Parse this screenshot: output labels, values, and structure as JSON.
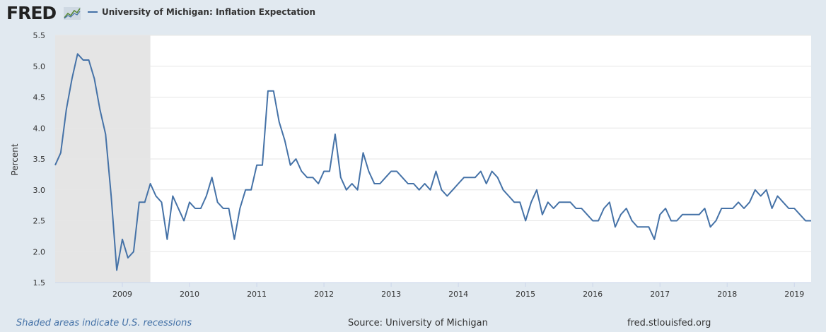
{
  "header": {
    "logo_text": "FRED",
    "logo_icon": "fred-chart-icon",
    "series_title": "University of Michigan: Inflation Expectation"
  },
  "footer": {
    "recession_note": "Shaded areas indicate U.S. recessions",
    "source": "Source: University of Michigan",
    "site": "fred.stlouisfed.org"
  },
  "colors": {
    "line": "#4572a7",
    "recession": "#e5e5e5",
    "background": "#e1e9f0",
    "plot": "#ffffff",
    "grid": "#e6e6e6"
  },
  "chart_data": {
    "type": "line",
    "title": "University of Michigan: Inflation Expectation",
    "ylabel": "Percent",
    "xlabel": "",
    "ylim": [
      1.5,
      5.5
    ],
    "xlim": [
      "2008-01",
      "2019-04"
    ],
    "y_ticks": [
      "1.5",
      "2.0",
      "2.5",
      "3.0",
      "3.5",
      "4.0",
      "4.5",
      "5.0",
      "5.5"
    ],
    "x_ticks": [
      "2009",
      "2010",
      "2011",
      "2012",
      "2013",
      "2014",
      "2015",
      "2016",
      "2017",
      "2018",
      "2019"
    ],
    "grid": "horizontal",
    "recessions": [
      [
        "2008-01",
        "2009-06"
      ]
    ],
    "series": [
      {
        "name": "University of Michigan: Inflation Expectation",
        "start": "2008-01",
        "frequency": "monthly",
        "values": [
          3.4,
          3.6,
          4.3,
          4.8,
          5.2,
          5.1,
          5.1,
          4.8,
          4.3,
          3.9,
          2.9,
          1.7,
          2.2,
          1.9,
          2.0,
          2.8,
          2.8,
          3.1,
          2.9,
          2.8,
          2.2,
          2.9,
          2.7,
          2.5,
          2.8,
          2.7,
          2.7,
          2.9,
          3.2,
          2.8,
          2.7,
          2.7,
          2.2,
          2.7,
          3.0,
          3.0,
          3.4,
          3.4,
          4.6,
          4.6,
          4.1,
          3.8,
          3.4,
          3.5,
          3.3,
          3.2,
          3.2,
          3.1,
          3.3,
          3.3,
          3.9,
          3.2,
          3.0,
          3.1,
          3.0,
          3.6,
          3.3,
          3.1,
          3.1,
          3.2,
          3.3,
          3.3,
          3.2,
          3.1,
          3.1,
          3.0,
          3.1,
          3.0,
          3.3,
          3.0,
          2.9,
          3.0,
          3.1,
          3.2,
          3.2,
          3.2,
          3.3,
          3.1,
          3.3,
          3.2,
          3.0,
          2.9,
          2.8,
          2.8,
          2.5,
          2.8,
          3.0,
          2.6,
          2.8,
          2.7,
          2.8,
          2.8,
          2.8,
          2.7,
          2.7,
          2.6,
          2.5,
          2.5,
          2.7,
          2.8,
          2.4,
          2.6,
          2.7,
          2.5,
          2.4,
          2.4,
          2.4,
          2.2,
          2.6,
          2.7,
          2.5,
          2.5,
          2.6,
          2.6,
          2.6,
          2.6,
          2.7,
          2.4,
          2.5,
          2.7,
          2.7,
          2.7,
          2.8,
          2.7,
          2.8,
          3.0,
          2.9,
          3.0,
          2.7,
          2.9,
          2.8,
          2.7,
          2.7,
          2.6,
          2.5,
          2.5
        ]
      }
    ]
  }
}
